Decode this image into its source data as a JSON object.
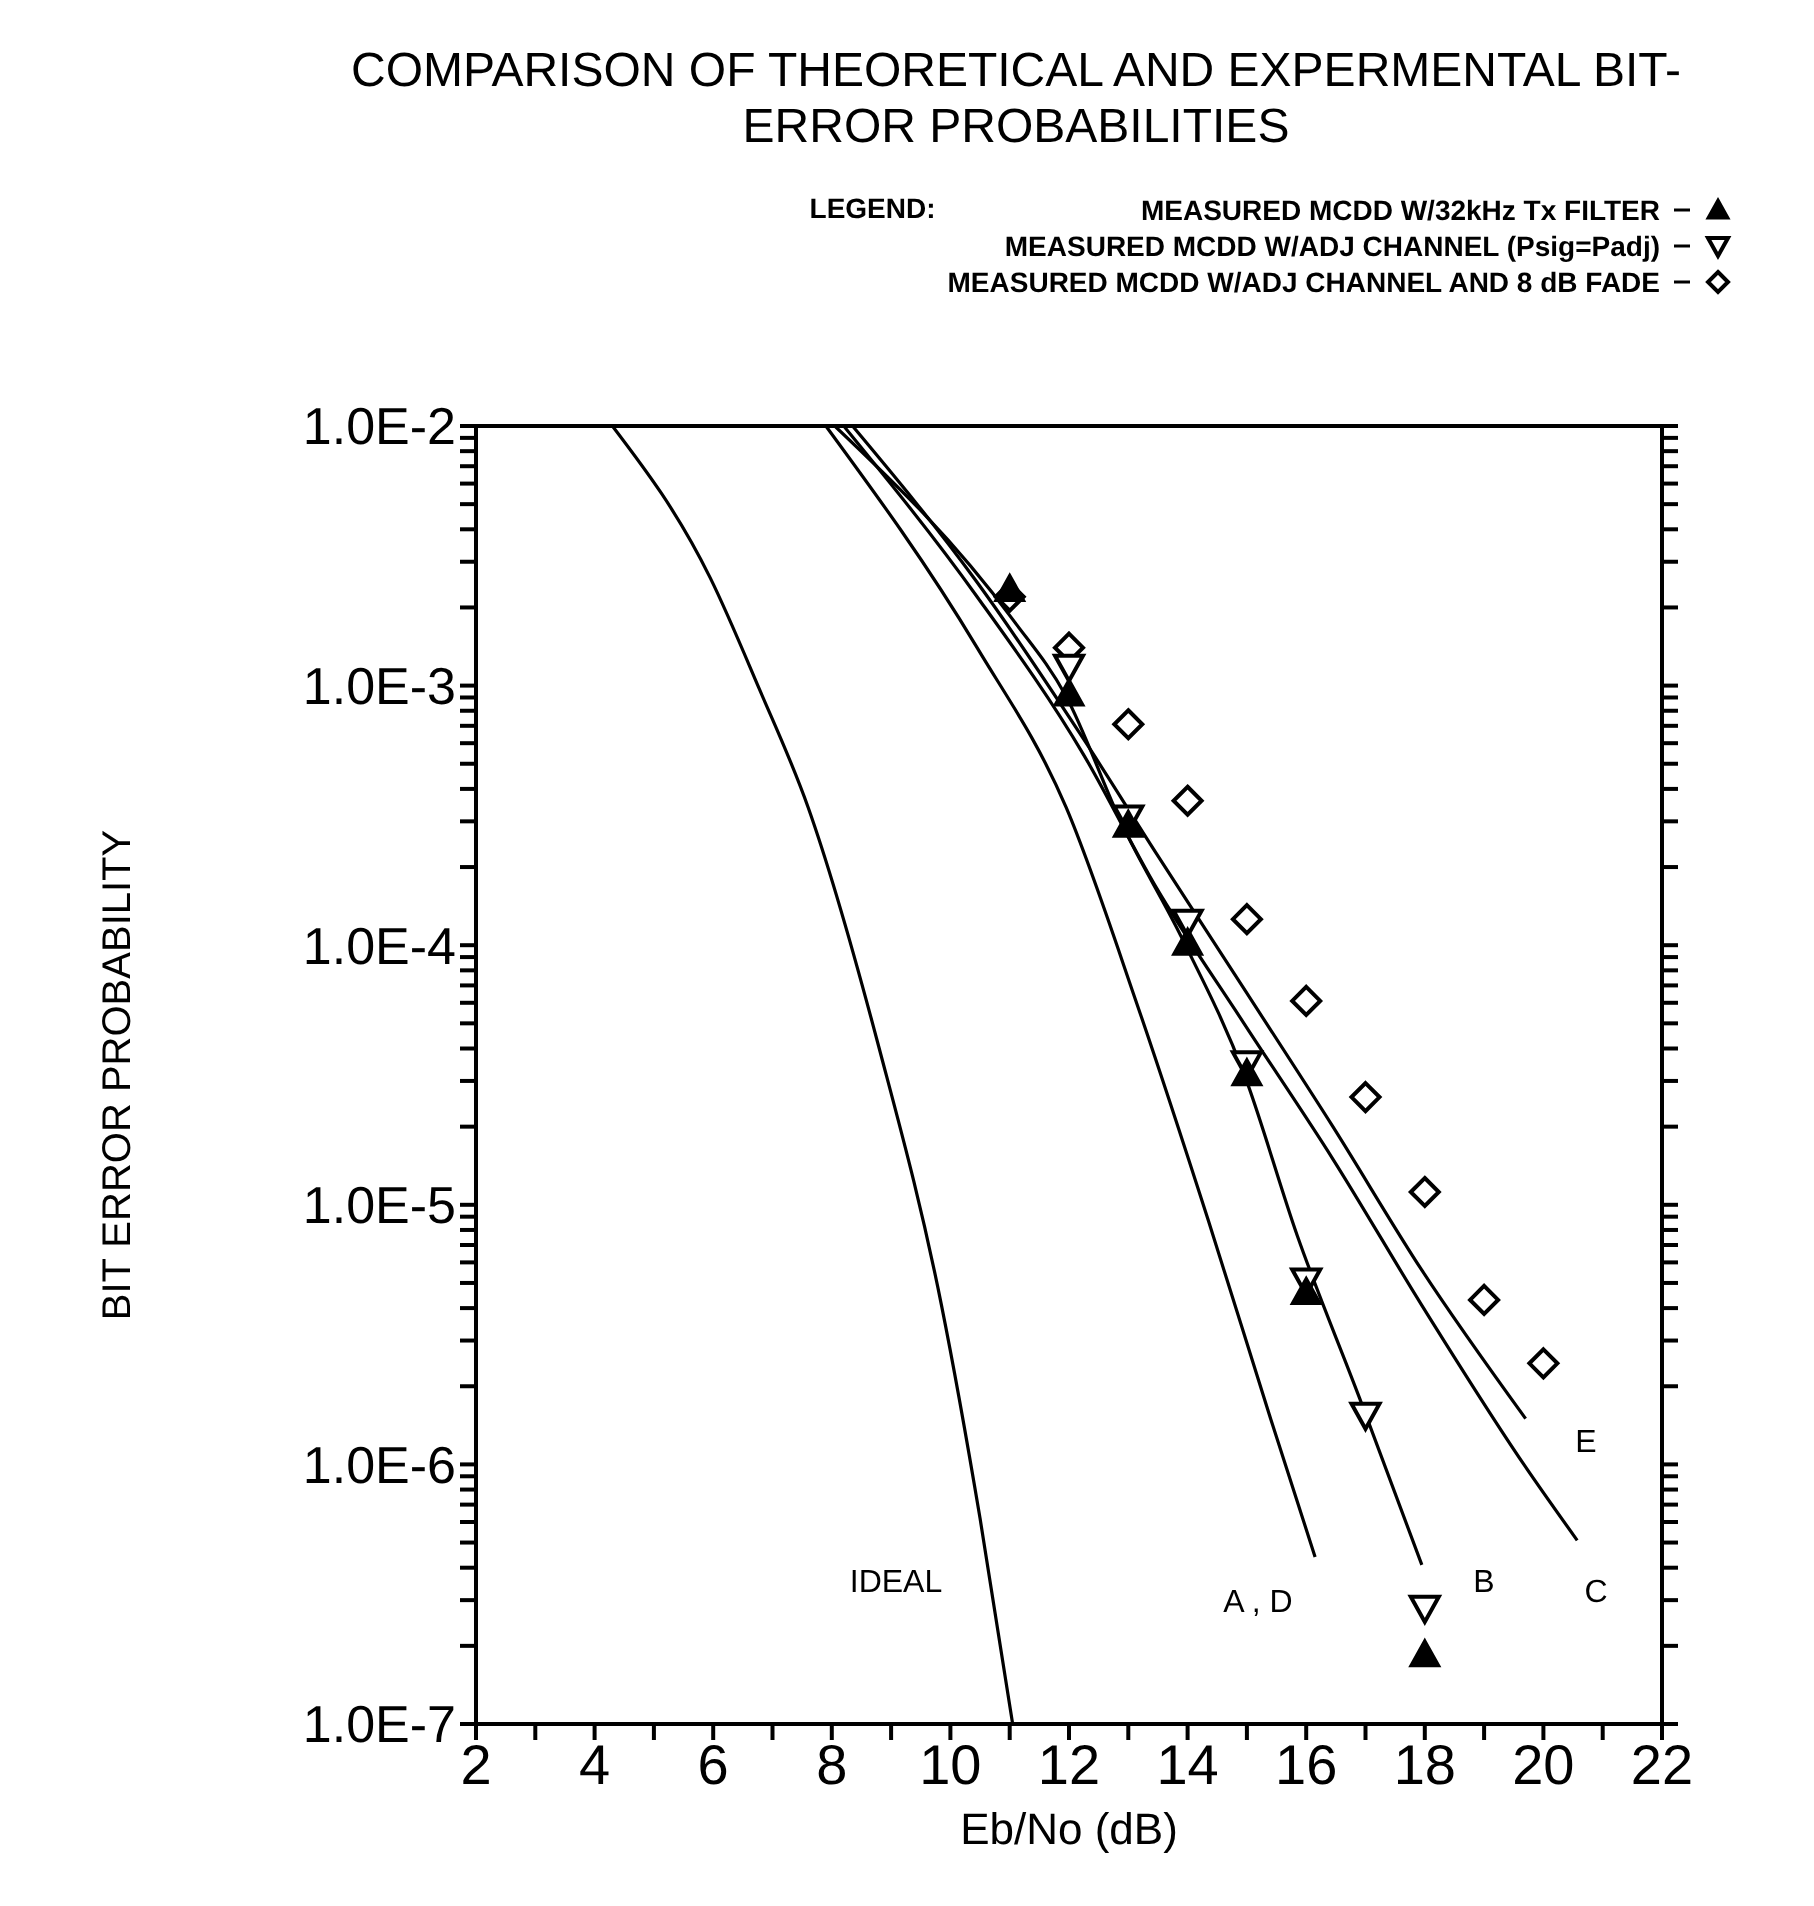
{
  "chart_data": {
    "type": "line",
    "title": "COMPARISON OF THEORETICAL AND EXPERMENTAL BIT-ERROR PROBABILITIES",
    "xlabel": "Eb/No (dB)",
    "ylabel": "BIT ERROR PROBABILITY",
    "legend_title": "LEGEND:",
    "legend": "top right",
    "log": "y",
    "grid": false,
    "xlim": [
      2,
      22
    ],
    "ylim": [
      1e-07,
      0.01
    ],
    "xticks": [
      2,
      {
        "value": 3,
        "label": null
      },
      4,
      {
        "value": 5,
        "label": null
      },
      6,
      {
        "value": 7,
        "label": null
      },
      8,
      {
        "value": 9,
        "label": null
      },
      10,
      {
        "value": 11,
        "label": null
      },
      12,
      {
        "value": 13,
        "label": null
      },
      14,
      {
        "value": 15,
        "label": null
      },
      16,
      {
        "value": 17,
        "label": null
      },
      18,
      {
        "value": 19,
        "label": null
      },
      20,
      {
        "value": 21,
        "label": null
      },
      22
    ],
    "yticks": [
      {
        "value": 1e-07,
        "label": "1.0E-7"
      },
      {
        "value": 2e-07,
        "label": null
      },
      {
        "value": 3e-07,
        "label": null
      },
      {
        "value": 4e-07,
        "label": null
      },
      {
        "value": 5e-07,
        "label": null
      },
      {
        "value": 6e-07,
        "label": null
      },
      {
        "value": 7e-07,
        "label": null
      },
      {
        "value": 8e-07,
        "label": null
      },
      {
        "value": 9e-07,
        "label": null
      },
      {
        "value": 1e-06,
        "label": "1.0E-6"
      },
      {
        "value": 2e-06,
        "label": null
      },
      {
        "value": 3e-06,
        "label": null
      },
      {
        "value": 4e-06,
        "label": null
      },
      {
        "value": 5e-06,
        "label": null
      },
      {
        "value": 6e-06,
        "label": null
      },
      {
        "value": 7e-06,
        "label": null
      },
      {
        "value": 8e-06,
        "label": null
      },
      {
        "value": 9e-06,
        "label": null
      },
      {
        "value": 1e-05,
        "label": "1.0E-5"
      },
      {
        "value": 2e-05,
        "label": null
      },
      {
        "value": 3e-05,
        "label": null
      },
      {
        "value": 4e-05,
        "label": null
      },
      {
        "value": 5e-05,
        "label": null
      },
      {
        "value": 6e-05,
        "label": null
      },
      {
        "value": 7e-05,
        "label": null
      },
      {
        "value": 8e-05,
        "label": null
      },
      {
        "value": 9e-05,
        "label": null
      },
      {
        "value": 0.0001,
        "label": "1.0E-4"
      },
      {
        "value": 0.0002,
        "label": null
      },
      {
        "value": 0.0003,
        "label": null
      },
      {
        "value": 0.0004,
        "label": null
      },
      {
        "value": 0.0005,
        "label": null
      },
      {
        "value": 0.0006,
        "label": null
      },
      {
        "value": 0.0007,
        "label": null
      },
      {
        "value": 0.0008,
        "label": null
      },
      {
        "value": 0.0009,
        "label": null
      },
      {
        "value": 0.001,
        "label": "1.0E-3"
      },
      {
        "value": 0.002,
        "label": null
      },
      {
        "value": 0.003,
        "label": null
      },
      {
        "value": 0.004,
        "label": null
      },
      {
        "value": 0.005,
        "label": null
      },
      {
        "value": 0.006,
        "label": null
      },
      {
        "value": 0.007,
        "label": null
      },
      {
        "value": 0.008,
        "label": null
      },
      {
        "value": 0.009,
        "label": null
      },
      {
        "value": 0.01,
        "label": "1.0E-2"
      }
    ],
    "series": [
      {
        "color": "#000000",
        "marker": "none",
        "x": [
          4.3,
          5.95,
          6.77,
          7.6,
          8.8,
          9.85,
          10.5,
          11.05
        ],
        "values": [
          0.01,
          0.0026,
          0.00098,
          0.00034,
          4e-05,
          4.1e-06,
          6.2e-07,
          1e-07
        ]
      },
      {
        "color": "#000000",
        "marker": "none",
        "x": [
          7.9,
          10.45,
          11.95,
          13.15,
          14.35,
          15.4,
          16.15
        ],
        "values": [
          0.01,
          0.0014,
          0.00034,
          5.9e-05,
          8.7e-06,
          1.5e-06,
          4.4e-07
        ]
      },
      {
        "color": "#000000",
        "marker": "none",
        "x": [
          8.05,
          11.05,
          11.95,
          12.9,
          13.9,
          14.95,
          15.85,
          16.9,
          17.95
        ],
        "values": [
          0.01,
          0.0018,
          0.00091,
          0.00029,
          0.000107,
          3.2e-05,
          7.6e-06,
          1.8e-06,
          4.1e-07
        ]
      },
      {
        "color": "#000000",
        "marker": "none",
        "x": [
          8.2,
          10.45,
          12.25,
          13.45,
          14.95,
          16.45,
          17.95,
          19.67,
          20.57
        ],
        "values": [
          0.01,
          0.0022,
          0.00054,
          0.00017,
          5e-05,
          1.5e-05,
          4.1e-06,
          1e-06,
          5.1e-07
        ]
      },
      {
        "color": "#000000",
        "marker": "none",
        "x": [
          8.35,
          10.45,
          12.25,
          13.45,
          14.95,
          16.45,
          17.95,
          19.7
        ],
        "values": [
          0.01,
          0.0025,
          0.00062,
          0.00023,
          6.8e-05,
          2e-05,
          5.6e-06,
          1.5e-06
        ]
      },
      {
        "type": "scatter",
        "name": "MEASURED MCDD W/32kHz Tx FILTER",
        "color": "#000000",
        "marker": "triangle",
        "x": [
          11,
          12,
          13,
          14,
          15,
          16,
          18
        ],
        "values": [
          0.00235,
          0.00093,
          0.00029,
          0.000102,
          3.2e-05,
          4.6e-06,
          1.85e-07
        ]
      },
      {
        "type": "scatter",
        "name": "MEASURED MCDD W/ADJ CHANNEL (Psig=Padj)",
        "color": "#000000",
        "marker": "triangle-down",
        "x": [
          12,
          13,
          14,
          15,
          16,
          17,
          18
        ],
        "values": [
          0.00118,
          0.00031,
          0.000123,
          3.5e-05,
          5.1e-06,
          1.55e-06,
          2.8e-07
        ]
      },
      {
        "type": "scatter",
        "name": "MEASURED MCDD W/ADJ CHANNEL AND 8 dB FADE",
        "color": "#000000",
        "marker": "diamond",
        "x": [
          11,
          12,
          13,
          14,
          15,
          16,
          17,
          18,
          19,
          20
        ],
        "values": [
          0.0022,
          0.0014,
          0.00071,
          0.00036,
          0.000126,
          6.1e-05,
          2.6e-05,
          1.12e-05,
          4.3e-06,
          2.45e-06
        ]
      }
    ],
    "annotations": [
      "IDEAL",
      "A , D",
      "B",
      "C",
      "E"
    ]
  }
}
